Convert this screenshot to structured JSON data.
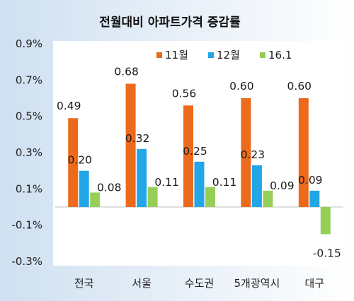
{
  "chart_data": {
    "type": "bar",
    "title": "전월대비 아파트가격 증감률",
    "categories": [
      "전국",
      "서울",
      "수도권",
      "5개광역시",
      "대구"
    ],
    "series": [
      {
        "name": "11월",
        "color": "#ec6a1c",
        "values": [
          0.49,
          0.68,
          0.56,
          0.6,
          0.6
        ],
        "labels": [
          "0.49",
          "0.68",
          "0.56",
          "0.60",
          "0.60"
        ]
      },
      {
        "name": "12월",
        "color": "#22a6e8",
        "values": [
          0.2,
          0.32,
          0.25,
          0.23,
          0.09
        ],
        "labels": [
          "0.20",
          "0.32",
          "0.25",
          "0.23",
          "0.09"
        ]
      },
      {
        "name": "16.1",
        "color": "#97ce58",
        "values": [
          0.08,
          0.11,
          0.11,
          0.09,
          -0.15
        ],
        "labels": [
          "0.08",
          "0.11",
          "0.11",
          "0.09",
          "-0.15"
        ]
      }
    ],
    "y_ticks": [
      -0.3,
      -0.1,
      0.1,
      0.3,
      0.5,
      0.7,
      0.9
    ],
    "y_tick_labels": [
      "-0.3%",
      "-0.1%",
      "0.1%",
      "0.3%",
      "0.5%",
      "0.7%",
      "0.9%"
    ],
    "ylim": [
      -0.3,
      0.9
    ],
    "xlabel": "",
    "ylabel": "",
    "legend_position": "top-right",
    "grid": false
  }
}
